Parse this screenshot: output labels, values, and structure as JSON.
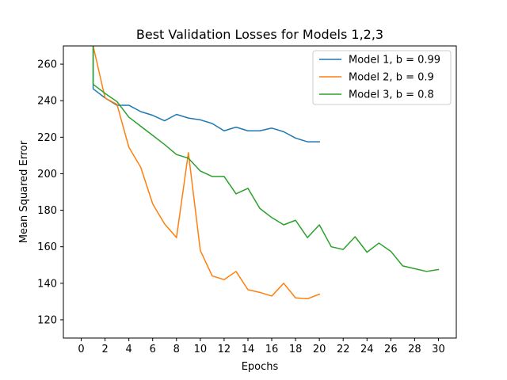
{
  "chart_data": {
    "type": "line",
    "title": "Best Validation Losses for Models 1,2,3",
    "xlabel": "Epochs",
    "ylabel": "Mean Squared Error",
    "xlim": [
      -1.5,
      31.5
    ],
    "ylim": [
      110,
      270
    ],
    "xticks": [
      0,
      2,
      4,
      6,
      8,
      10,
      12,
      14,
      16,
      18,
      20,
      22,
      24,
      26,
      28,
      30
    ],
    "yticks": [
      120,
      140,
      160,
      180,
      200,
      220,
      240,
      260
    ],
    "grid": false,
    "legend_position": "top-right",
    "series": [
      {
        "name": "Model 1, b = 0.99",
        "color": "#1f77b4",
        "x": [
          1,
          1,
          2,
          3,
          4,
          5,
          6,
          7,
          8,
          9,
          10,
          11,
          12,
          13,
          14,
          15,
          16,
          17,
          18,
          19,
          20
        ],
        "values": [
          270,
          246.5,
          241.5,
          237.5,
          237.5,
          234,
          232,
          229,
          232.5,
          230.5,
          229.5,
          227.5,
          223.5,
          225.5,
          223.5,
          223.5,
          225,
          223,
          219.5,
          217.5,
          217.5
        ]
      },
      {
        "name": "Model 2, b = 0.9",
        "color": "#ff7f0e",
        "x": [
          1,
          2,
          3,
          4,
          5,
          6,
          7,
          8,
          9,
          10,
          11,
          12,
          13,
          14,
          15,
          16,
          17,
          18,
          19,
          20
        ],
        "values": [
          270,
          241.5,
          238,
          214.5,
          203.5,
          183.5,
          172.5,
          165,
          211.5,
          158,
          144,
          142,
          146.5,
          136.5,
          135,
          133,
          140,
          132,
          131.5,
          134
        ]
      },
      {
        "name": "Model 3, b = 0.8",
        "color": "#2ca02c",
        "x": [
          1,
          1,
          2,
          3,
          4,
          5,
          6,
          7,
          8,
          9,
          10,
          11,
          12,
          13,
          14,
          15,
          16,
          17,
          18,
          19,
          20,
          21,
          22,
          23,
          24,
          25,
          26,
          27,
          28,
          29,
          30
        ],
        "values": [
          270,
          249,
          244,
          239.5,
          231,
          226,
          221,
          216,
          210.5,
          208.5,
          201.5,
          198.5,
          198.5,
          189,
          192,
          181,
          176,
          172,
          174.5,
          165,
          172,
          160,
          158.5,
          165.5,
          157,
          162,
          157.5,
          149.5,
          148,
          146.5,
          147.5
        ]
      }
    ]
  }
}
